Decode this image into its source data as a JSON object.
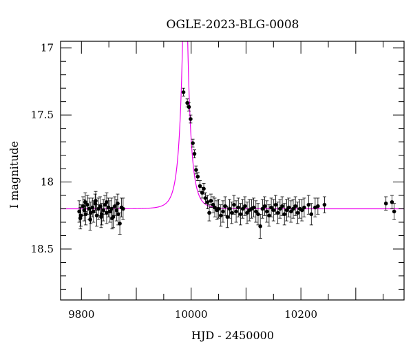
{
  "chart_data": {
    "type": "scatter",
    "title": "OGLE-2023-BLG-0008",
    "xlabel": "HJD - 2450000",
    "ylabel": "I magnitude",
    "xlim": [
      9762,
      10388
    ],
    "ylim": [
      18.88,
      16.95
    ],
    "y_inverted": true,
    "xticks": [
      9800,
      10000,
      10200
    ],
    "xtick_labels": [
      "9800",
      "10000",
      "10200"
    ],
    "yticks": [
      17,
      17.5,
      18,
      18.5
    ],
    "ytick_labels": [
      "17",
      "17.5",
      "18",
      "18.5"
    ],
    "grid": false,
    "colors": {
      "points": "#000000",
      "model": "#ee00ee",
      "frame": "#000000"
    },
    "model": {
      "name": "",
      "baseline_mag": 18.2,
      "t0": 9989,
      "u0": 0.1,
      "tE": 15
    },
    "series": [
      {
        "kind": "points_with_errorbars",
        "x": [
          9796,
          9799,
          9803,
          9805,
          9808,
          9811,
          9814,
          9817,
          9820,
          9822,
          9825,
          9828,
          9831,
          9834,
          9837,
          9840,
          9843,
          9846,
          9849,
          9852,
          9855,
          9858,
          9861,
          9864,
          9867,
          9870,
          9873,
          9876,
          9798,
          9807,
          9816,
          9826,
          9836,
          9846,
          9856,
          9866,
          9986,
          9993,
          9996,
          9999,
          10003,
          10006,
          10009,
          10012,
          10016,
          10020,
          10023,
          10026,
          10030,
          10033,
          10036,
          10040,
          10043,
          10047,
          10050,
          10054,
          10058,
          10062,
          10066,
          10070,
          10074,
          10078,
          10082,
          10086,
          10090,
          10094,
          10098,
          10102,
          10106,
          10110,
          10114,
          10118,
          10122,
          10126,
          10130,
          10134,
          10138,
          10142,
          10146,
          10150,
          10154,
          10158,
          10162,
          10166,
          10170,
          10174,
          10178,
          10182,
          10186,
          10190,
          10194,
          10198,
          10202,
          10206,
          10214,
          10219,
          10226,
          10231,
          10243,
          10355,
          10366,
          10370
        ],
        "y": [
          18.22,
          18.25,
          18.18,
          18.21,
          18.24,
          18.17,
          18.2,
          18.23,
          18.19,
          18.22,
          18.16,
          18.25,
          18.2,
          18.18,
          18.24,
          18.21,
          18.17,
          18.23,
          18.19,
          18.22,
          18.2,
          18.26,
          18.18,
          18.21,
          18.24,
          18.31,
          18.19,
          18.2,
          18.27,
          18.15,
          18.28,
          18.14,
          18.26,
          18.15,
          18.27,
          18.16,
          17.33,
          17.41,
          17.44,
          17.53,
          17.71,
          17.79,
          17.91,
          17.96,
          18.03,
          18.08,
          18.05,
          18.12,
          18.15,
          18.23,
          18.14,
          18.17,
          18.19,
          18.21,
          18.2,
          18.25,
          18.22,
          18.18,
          18.26,
          18.2,
          18.23,
          18.17,
          18.22,
          18.19,
          18.24,
          18.2,
          18.18,
          18.23,
          18.21,
          18.2,
          18.19,
          18.22,
          18.24,
          18.33,
          18.2,
          18.18,
          18.22,
          18.25,
          18.19,
          18.21,
          18.17,
          18.23,
          18.2,
          18.18,
          18.24,
          18.21,
          18.19,
          18.22,
          18.2,
          18.18,
          18.23,
          18.2,
          18.21,
          18.19,
          18.17,
          18.24,
          18.19,
          18.18,
          18.17,
          18.16,
          18.15,
          18.22
        ],
        "err": [
          0.08,
          0.08,
          0.07,
          0.08,
          0.08,
          0.07,
          0.08,
          0.08,
          0.07,
          0.08,
          0.07,
          0.08,
          0.08,
          0.07,
          0.08,
          0.08,
          0.07,
          0.08,
          0.07,
          0.08,
          0.08,
          0.08,
          0.07,
          0.08,
          0.08,
          0.08,
          0.07,
          0.08,
          0.08,
          0.07,
          0.08,
          0.07,
          0.08,
          0.07,
          0.08,
          0.07,
          0.03,
          0.03,
          0.03,
          0.03,
          0.03,
          0.03,
          0.03,
          0.03,
          0.04,
          0.04,
          0.04,
          0.04,
          0.05,
          0.06,
          0.05,
          0.06,
          0.07,
          0.07,
          0.07,
          0.08,
          0.08,
          0.07,
          0.08,
          0.07,
          0.08,
          0.07,
          0.08,
          0.07,
          0.08,
          0.07,
          0.07,
          0.08,
          0.08,
          0.07,
          0.07,
          0.08,
          0.08,
          0.09,
          0.07,
          0.07,
          0.08,
          0.08,
          0.07,
          0.08,
          0.07,
          0.08,
          0.07,
          0.07,
          0.08,
          0.08,
          0.07,
          0.08,
          0.07,
          0.07,
          0.08,
          0.07,
          0.08,
          0.07,
          0.07,
          0.08,
          0.07,
          0.06,
          0.06,
          0.05,
          0.05,
          0.06
        ]
      }
    ]
  }
}
